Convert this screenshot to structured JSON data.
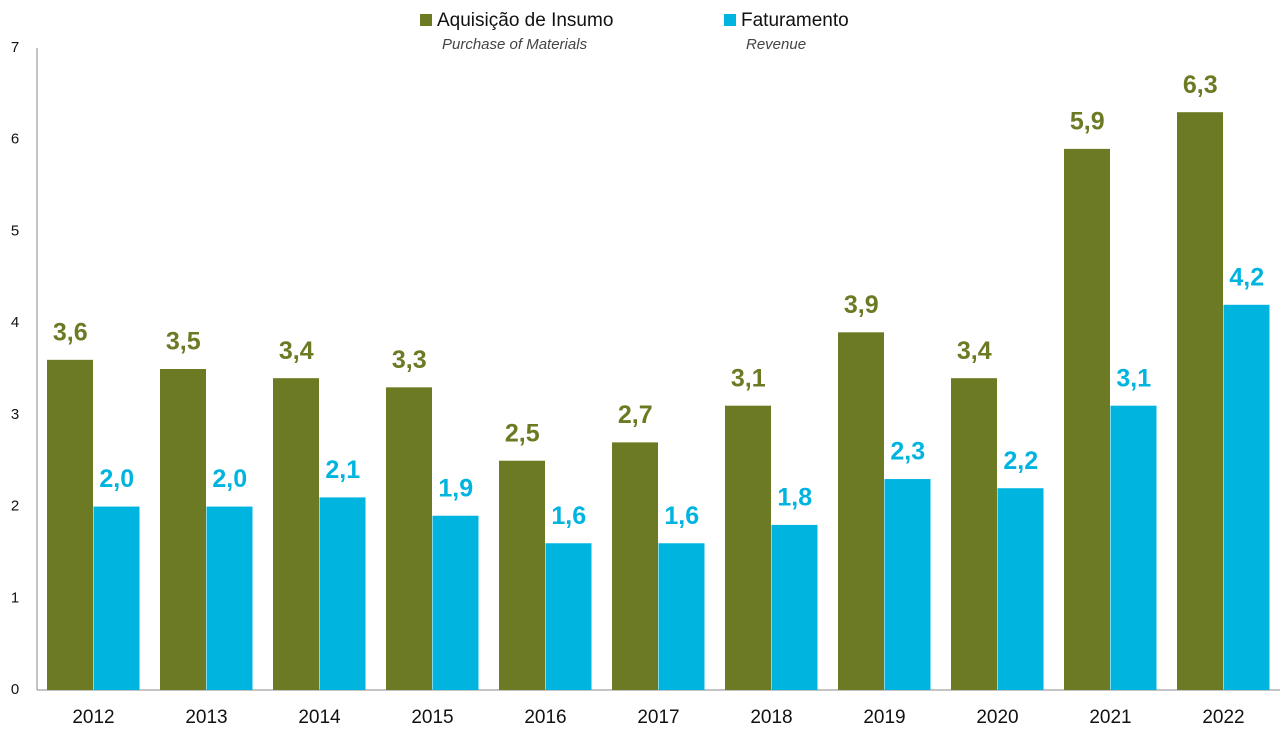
{
  "chart_data": {
    "type": "bar",
    "categories": [
      "2012",
      "2013",
      "2014",
      "2015",
      "2016",
      "2017",
      "2018",
      "2019",
      "2020",
      "2021",
      "2022"
    ],
    "series": [
      {
        "name": "Aquisição de Insumo",
        "subtitle": "Purchase of Materials",
        "color": "#6b7a23",
        "values": [
          3.6,
          3.5,
          3.4,
          3.3,
          2.5,
          2.7,
          3.1,
          3.9,
          3.4,
          5.9,
          6.3
        ],
        "value_labels": [
          "3,6",
          "3,5",
          "3,4",
          "3,3",
          "2,5",
          "2,7",
          "3,1",
          "3,9",
          "3,4",
          "5,9",
          "6,3"
        ]
      },
      {
        "name": "Faturamento",
        "subtitle": "Revenue",
        "color": "#00b4e0",
        "values": [
          2.0,
          2.0,
          2.1,
          1.9,
          1.6,
          1.6,
          1.8,
          2.3,
          2.2,
          3.1,
          4.2
        ],
        "value_labels": [
          "2,0",
          "2,0",
          "2,1",
          "1,9",
          "1,6",
          "1,6",
          "1,8",
          "2,3",
          "2,2",
          "3,1",
          "4,2"
        ]
      }
    ],
    "ylim": [
      0,
      7
    ],
    "yticks": [
      0,
      1,
      2,
      3,
      4,
      5,
      6,
      7
    ],
    "grid": false
  }
}
